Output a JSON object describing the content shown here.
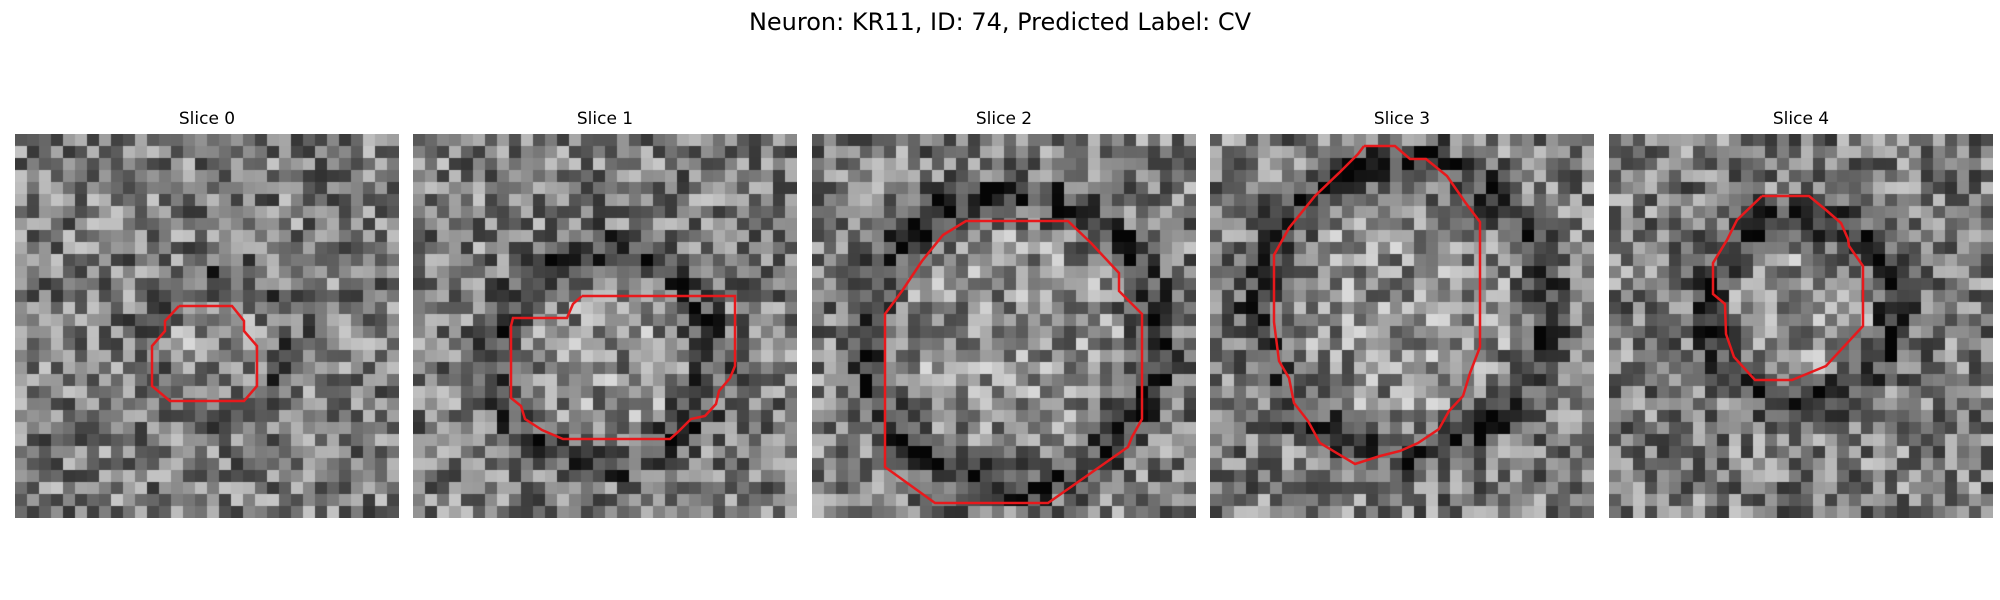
{
  "figure": {
    "title": "Neuron: KR11, ID: 74, Predicted Label: CV"
  },
  "panels": [
    {
      "title": "Slice 0"
    },
    {
      "title": "Slice 1"
    },
    {
      "title": "Slice 2"
    },
    {
      "title": "Slice 3"
    },
    {
      "title": "Slice 4"
    }
  ],
  "image": {
    "colormap": "gray",
    "contour_color": "#e8191c"
  }
}
